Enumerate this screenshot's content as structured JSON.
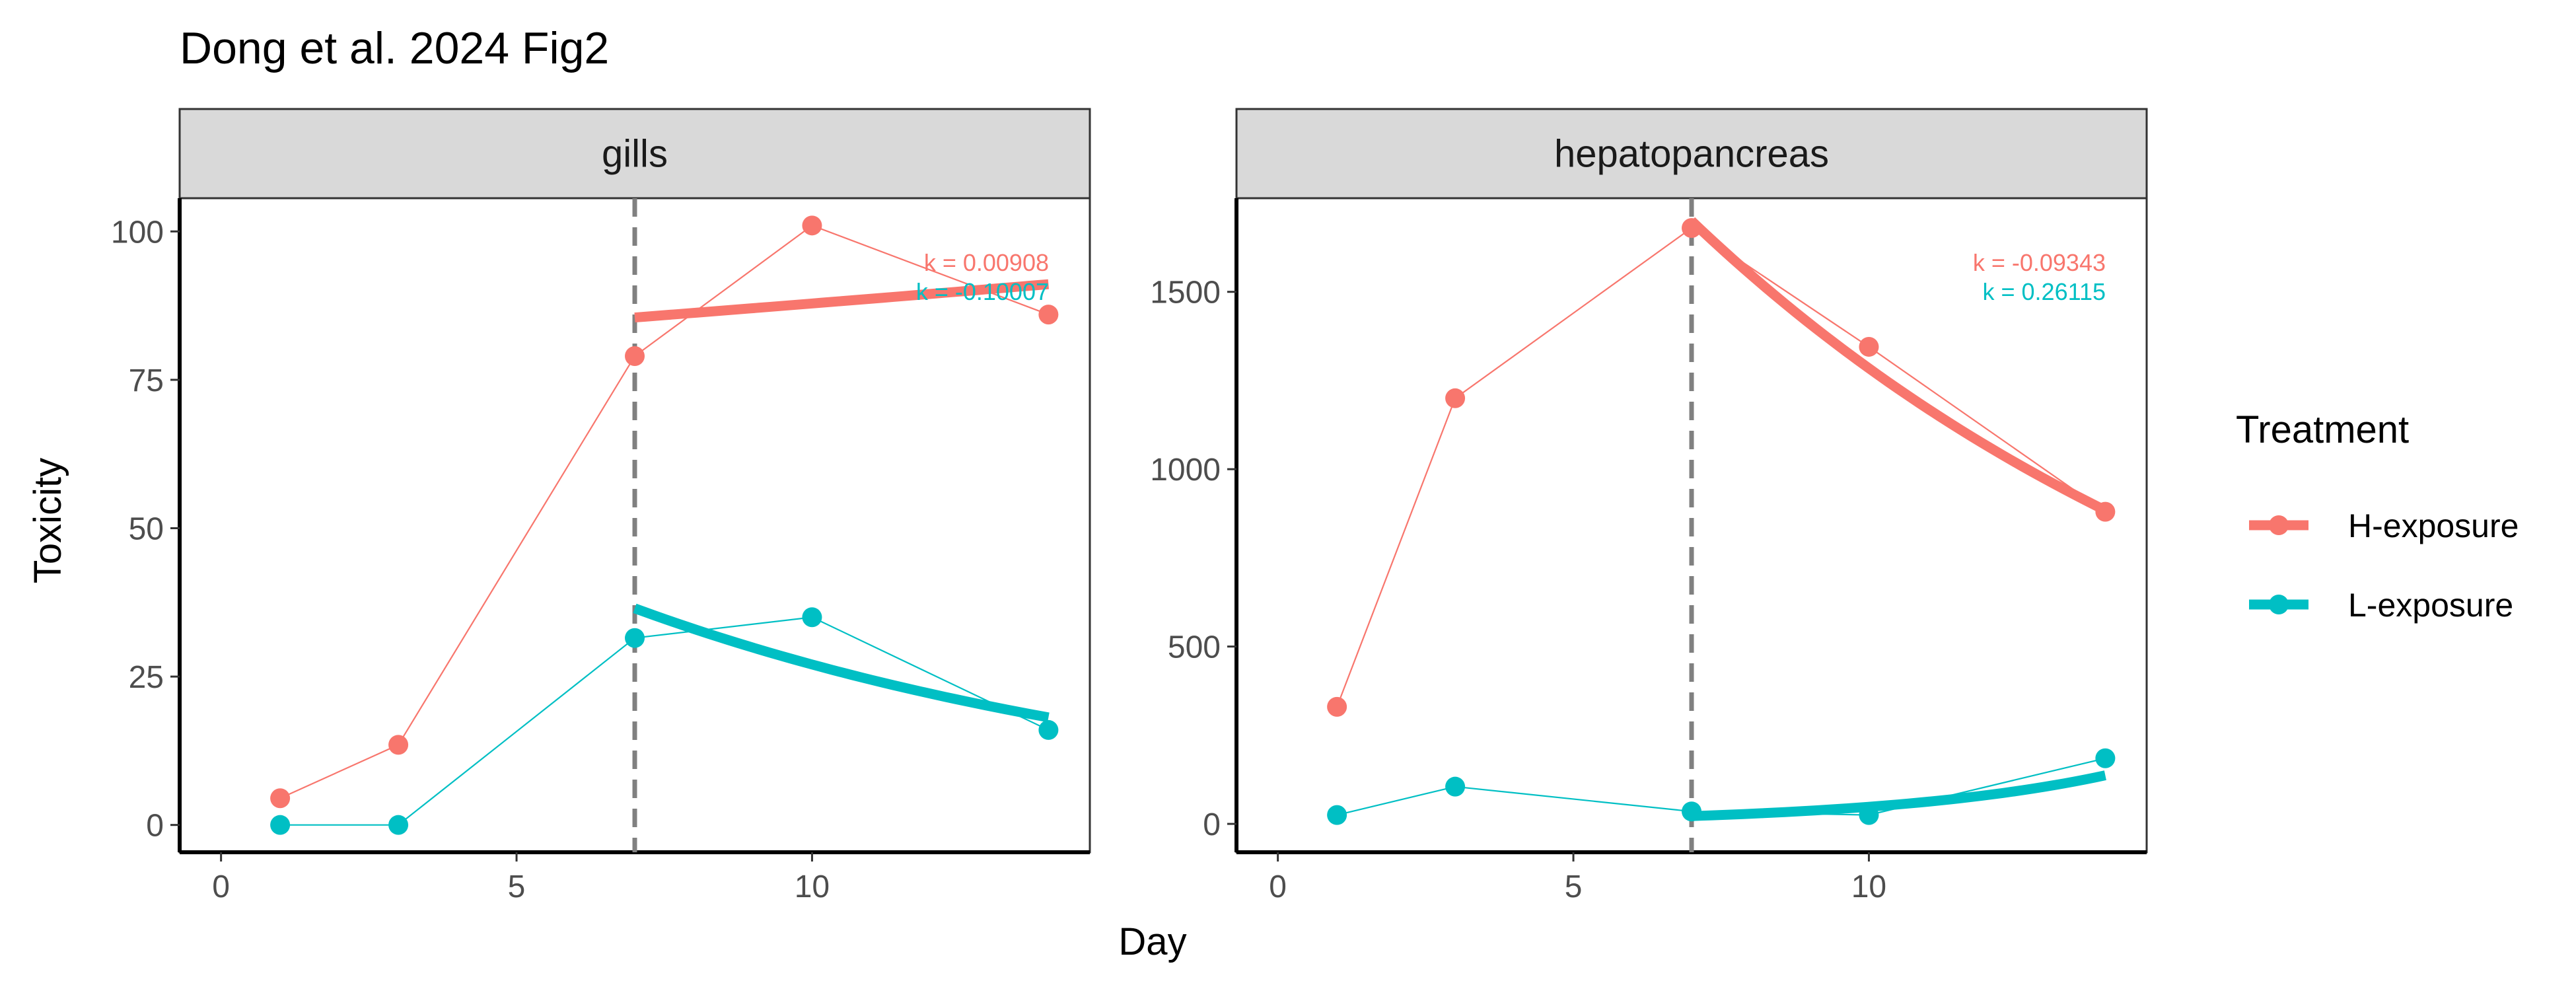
{
  "chart_data": {
    "type": "line",
    "title": "Dong et al. 2024 Fig2",
    "xlabel": "Day",
    "ylabel": "Toxicity",
    "colors": {
      "H-exposure": "#F8766D",
      "L-exposure": "#00BFC4"
    },
    "legend": {
      "title": "Treatment",
      "position": "right",
      "entries": [
        "H-exposure",
        "L-exposure"
      ]
    },
    "panels": [
      {
        "strip": "gills",
        "xlim": [
          -0.7,
          14.7
        ],
        "ylim": [
          -4.6,
          105.6
        ],
        "x_ticks": [
          0,
          5,
          10
        ],
        "y_ticks": [
          0,
          25,
          50,
          75,
          100
        ],
        "vline_x": 7,
        "series": [
          {
            "name": "H-exposure",
            "x": [
              1,
              3,
              7,
              10,
              14
            ],
            "y": [
              4.5,
              13.5,
              79,
              101,
              86
            ],
            "fit": {
              "x_start": 7,
              "x_end": 14,
              "y_start": 85.5,
              "k": 0.00908
            }
          },
          {
            "name": "L-exposure",
            "x": [
              1,
              3,
              7,
              10,
              14
            ],
            "y": [
              0,
              0,
              31.5,
              35,
              16
            ],
            "fit": {
              "x_start": 7,
              "x_end": 14,
              "y_start": 36.5,
              "k": -0.10007
            }
          }
        ],
        "annotations": [
          {
            "series": "H-exposure",
            "text": "k = 0.00908"
          },
          {
            "series": "L-exposure",
            "text": "k = -0.10007"
          }
        ]
      },
      {
        "strip": "hepatopancreas",
        "xlim": [
          -0.7,
          14.7
        ],
        "ylim": [
          -80,
          1764
        ],
        "x_ticks": [
          0,
          5,
          10
        ],
        "y_ticks": [
          0,
          500,
          1000,
          1500
        ],
        "vline_x": 7,
        "series": [
          {
            "name": "H-exposure",
            "x": [
              1,
              3,
              7,
              10,
              14
            ],
            "y": [
              330,
              1200,
              1680,
              1345,
              880
            ],
            "fit": {
              "x_start": 7,
              "x_end": 14,
              "y_start": 1700,
              "k": -0.09343
            }
          },
          {
            "name": "L-exposure",
            "x": [
              1,
              3,
              7,
              10,
              14
            ],
            "y": [
              25,
              105,
              35,
              25,
              185
            ],
            "fit": {
              "x_start": 7,
              "x_end": 14,
              "y_start": 22,
              "k": 0.26115
            }
          }
        ],
        "annotations": [
          {
            "series": "H-exposure",
            "text": "k = -0.09343"
          },
          {
            "series": "L-exposure",
            "text": "k = 0.26115"
          }
        ]
      }
    ]
  }
}
